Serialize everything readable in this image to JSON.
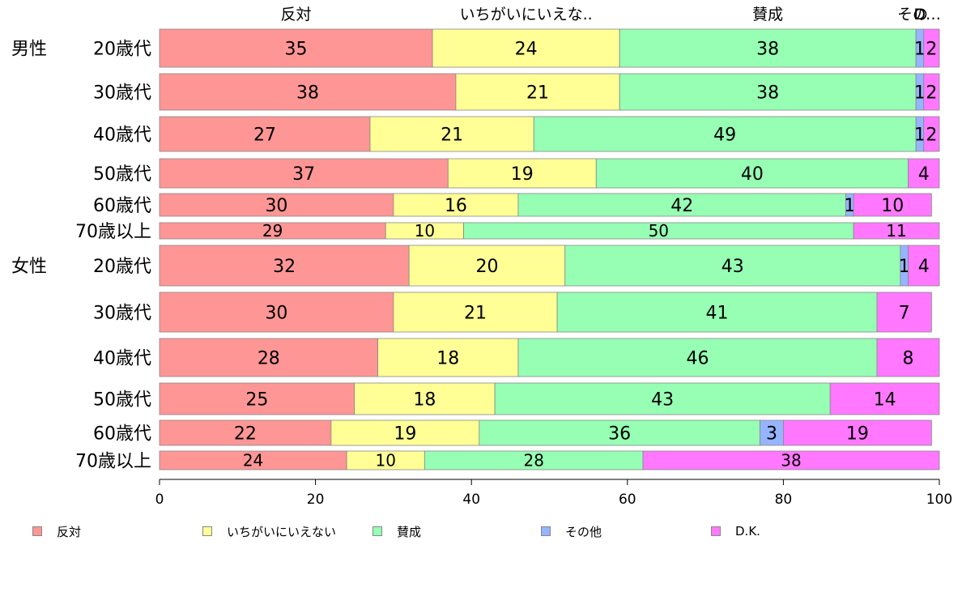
{
  "chart_data": {
    "type": "bar",
    "orientation": "horizontal",
    "stacked": true,
    "groups": [
      "男性",
      "女性"
    ],
    "categories": [
      {
        "group": "男性",
        "label": "20歳代"
      },
      {
        "group": "",
        "label": "30歳代"
      },
      {
        "group": "",
        "label": "40歳代"
      },
      {
        "group": "",
        "label": "50歳代"
      },
      {
        "group": "",
        "label": "60歳代"
      },
      {
        "group": "",
        "label": "70歳以上"
      },
      {
        "group": "女性",
        "label": "20歳代"
      },
      {
        "group": "",
        "label": "30歳代"
      },
      {
        "group": "",
        "label": "40歳代"
      },
      {
        "group": "",
        "label": "50歳代"
      },
      {
        "group": "",
        "label": "60歳代"
      },
      {
        "group": "",
        "label": "70歳以上"
      }
    ],
    "series": [
      {
        "name": "反対",
        "top_label": "反対",
        "color": "#ff9696",
        "values": [
          35,
          38,
          27,
          37,
          30,
          29,
          32,
          30,
          28,
          25,
          22,
          24
        ]
      },
      {
        "name": "いちがいにいえない",
        "top_label": "いちがいにいえな..",
        "color": "#ffff96",
        "values": [
          24,
          21,
          21,
          19,
          16,
          10,
          20,
          21,
          18,
          18,
          19,
          10
        ]
      },
      {
        "name": "賛成",
        "top_label": "賛成",
        "color": "#96ffb4",
        "values": [
          38,
          38,
          49,
          40,
          42,
          50,
          43,
          41,
          46,
          43,
          36,
          28
        ]
      },
      {
        "name": "その他",
        "top_label": "その",
        "color": "#96b4ff",
        "values": [
          1,
          1,
          1,
          0,
          1,
          0,
          1,
          0,
          0,
          0,
          3,
          0
        ]
      },
      {
        "name": "D.K.",
        "top_label": "D…",
        "color": "#ff78ff",
        "values": [
          2,
          2,
          2,
          4,
          10,
          11,
          4,
          7,
          8,
          14,
          19,
          38
        ]
      }
    ],
    "xlim": [
      0,
      100
    ],
    "xticks": [
      0,
      20,
      40,
      60,
      80,
      100
    ],
    "grid": false,
    "legend_position": "bottom"
  }
}
